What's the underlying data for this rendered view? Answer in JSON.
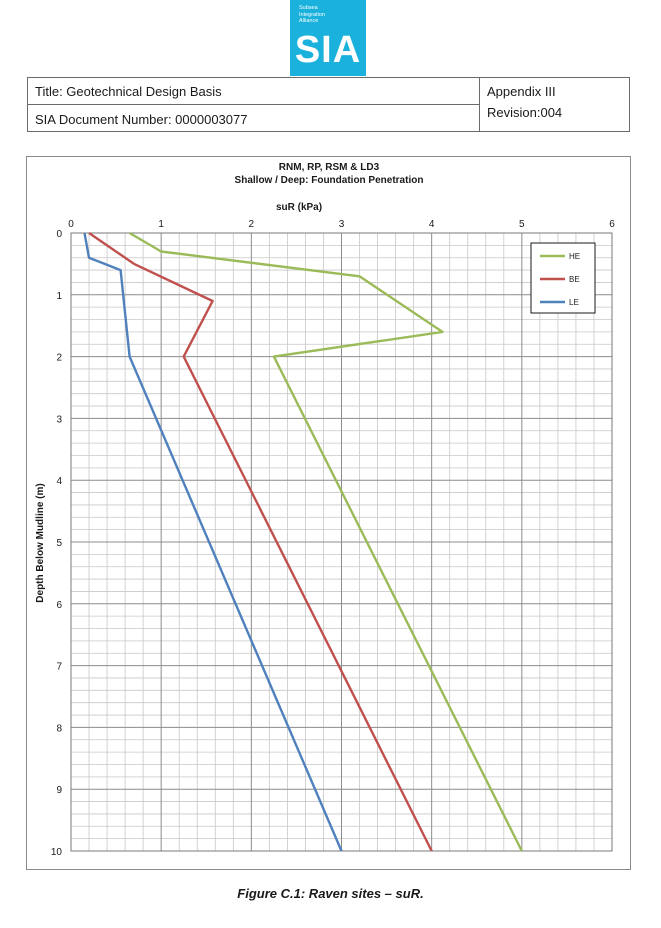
{
  "logo": {
    "small_lines": [
      "Subsea",
      "Integration",
      "Alliance"
    ],
    "main": "SIA",
    "color": "#1ab2dc"
  },
  "header": {
    "title": "Title: Geotechnical Design Basis",
    "appendix": "Appendix III",
    "doc_number": "SIA Document Number: 0000003077",
    "revision": "Revision:004"
  },
  "chart_data": {
    "type": "line",
    "title": "RNM, RP, RSM & LD3",
    "subtitle": "Shallow / Deep: Foundation Penetration",
    "xlabel": "suR (kPa)",
    "ylabel": "Depth Below Mudline (m)",
    "xlim": [
      0,
      6
    ],
    "ylim": [
      0,
      10
    ],
    "x_ticks": [
      0,
      1,
      2,
      3,
      4,
      5,
      6
    ],
    "y_ticks": [
      0,
      1,
      2,
      3,
      4,
      5,
      6,
      7,
      8,
      9,
      10
    ],
    "y_inverted": true,
    "x_axis_position": "top",
    "grid": true,
    "legend_position": "top-right",
    "series": [
      {
        "name": "HE",
        "color": "#9bbb59",
        "points": [
          [
            0.65,
            0.0
          ],
          [
            1.0,
            0.3
          ],
          [
            3.2,
            0.7
          ],
          [
            4.12,
            1.6
          ],
          [
            2.25,
            2.0
          ],
          [
            5.0,
            10.0
          ]
        ]
      },
      {
        "name": "BE",
        "color": "#c0504d",
        "points": [
          [
            0.2,
            0.0
          ],
          [
            0.7,
            0.5
          ],
          [
            1.57,
            1.1
          ],
          [
            1.25,
            2.0
          ],
          [
            4.0,
            10.0
          ]
        ]
      },
      {
        "name": "LE",
        "color": "#4f81bd",
        "points": [
          [
            0.15,
            0.0
          ],
          [
            0.2,
            0.4
          ],
          [
            0.55,
            0.6
          ],
          [
            0.65,
            2.0
          ],
          [
            3.0,
            10.0
          ]
        ]
      }
    ]
  },
  "caption": "Figure C.1: Raven sites – suR."
}
